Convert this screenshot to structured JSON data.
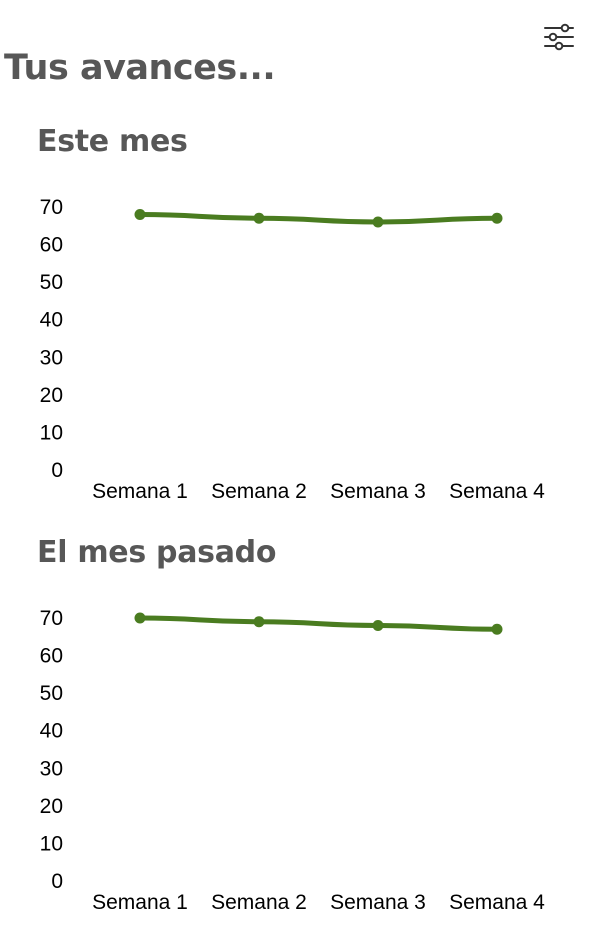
{
  "header": {
    "title": "Tus avances...",
    "filter_icon": "sliders-icon"
  },
  "colors": {
    "line": "#4a7c20",
    "text": "#575757",
    "axis_text": "#000000"
  },
  "chart_data": [
    {
      "type": "line",
      "title": "Este mes",
      "categories": [
        "Semana 1",
        "Semana 2",
        "Semana 3",
        "Semana 4"
      ],
      "values": [
        68,
        67,
        66,
        67
      ],
      "yticks": [
        0,
        10,
        20,
        30,
        40,
        50,
        60,
        70
      ],
      "ylim": [
        0,
        70
      ],
      "grid": false,
      "xlabel": "",
      "ylabel": ""
    },
    {
      "type": "line",
      "title": "El mes pasado",
      "categories": [
        "Semana 1",
        "Semana 2",
        "Semana 3",
        "Semana 4"
      ],
      "values": [
        70,
        69,
        68,
        67
      ],
      "yticks": [
        0,
        10,
        20,
        30,
        40,
        50,
        60,
        70
      ],
      "ylim": [
        0,
        70
      ],
      "grid": false,
      "xlabel": "",
      "ylabel": ""
    }
  ]
}
